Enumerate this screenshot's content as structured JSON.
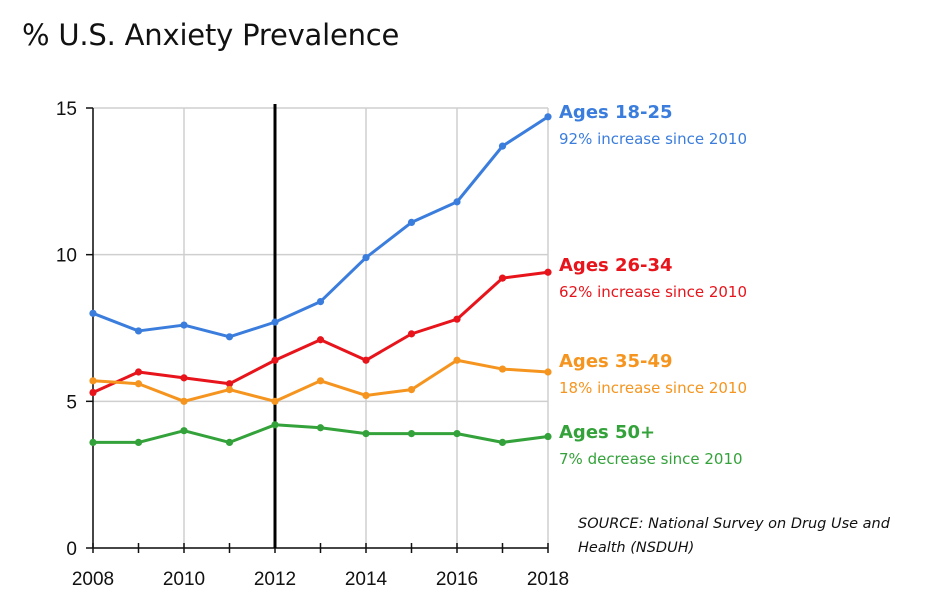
{
  "chart_data": {
    "type": "line",
    "title": "% U.S. Anxiety Prevalence",
    "x": [
      2008,
      2009,
      2010,
      2011,
      2012,
      2013,
      2014,
      2015,
      2016,
      2017,
      2018
    ],
    "xticks": [
      "2008",
      "2010",
      "2012",
      "2014",
      "2016",
      "2018"
    ],
    "yticks": [
      "0",
      "5",
      "10",
      "15"
    ],
    "ylim": [
      0,
      15
    ],
    "xlim": [
      2008,
      2018
    ],
    "grid": true,
    "marker_line_year": 2012,
    "series": [
      {
        "name": "Ages 18-25",
        "annotation": "92% increase since 2010",
        "color": "#3b7ddd",
        "values": [
          8.0,
          7.4,
          7.6,
          7.2,
          7.7,
          8.4,
          9.9,
          11.1,
          11.8,
          13.7,
          14.7
        ]
      },
      {
        "name": "Ages 26-34",
        "annotation": "62% increase since 2010",
        "color": "#e8141b",
        "values": [
          5.3,
          6.0,
          5.8,
          5.6,
          6.4,
          7.1,
          6.4,
          7.3,
          7.8,
          9.2,
          9.4
        ]
      },
      {
        "name": "Ages 35-49",
        "annotation": "18% increase since 2010",
        "color": "#f5951f",
        "values": [
          5.7,
          5.6,
          5.0,
          5.4,
          5.0,
          5.7,
          5.2,
          5.4,
          6.4,
          6.1,
          6.0
        ]
      },
      {
        "name": "Ages 50+",
        "annotation": "7% decrease since 2010",
        "color": "#34a23a",
        "values": [
          3.6,
          3.6,
          4.0,
          3.6,
          4.2,
          4.1,
          3.9,
          3.9,
          3.9,
          3.6,
          3.8
        ]
      }
    ],
    "source": "SOURCE: National Survey on Drug Use and Health (NSDUH)"
  }
}
